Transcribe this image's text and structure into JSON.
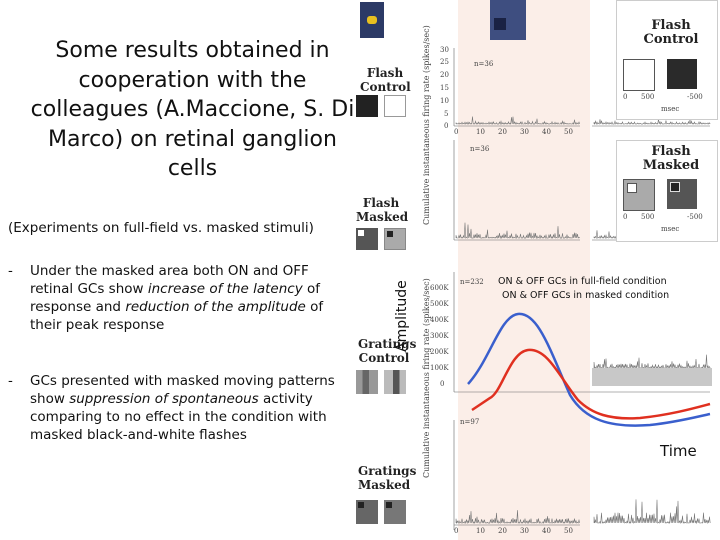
{
  "title": "Some results obtained in cooperation with the colleagues (A.Maccione, S. Di Marco) on retinal ganglion cells",
  "subtitle": "(Experiments on full-field vs. masked stimuli)",
  "bullets": [
    {
      "dash": "-",
      "parts": [
        {
          "text": "Under the masked area both ON and OFF retinal GCs show ",
          "italic": false
        },
        {
          "text": "increase of the latency",
          "italic": true
        },
        {
          "text": " of response and ",
          "italic": false
        },
        {
          "text": "reduction of the amplitude",
          "italic": true
        },
        {
          "text": " of their peak response",
          "italic": false
        }
      ]
    },
    {
      "dash": "-",
      "parts": [
        {
          "text": "GCs presented with masked moving patterns show ",
          "italic": false
        },
        {
          "text": "suppression of spontaneous",
          "italic": true
        },
        {
          "text": " activity comparing to no effect in the condition with masked black-and-white flashes",
          "italic": false
        }
      ]
    }
  ],
  "conditions": {
    "flash_control": "Flash Control",
    "flash_masked": "Flash Masked",
    "gratings_control": "Gratings Control",
    "gratings_masked": "Gratings Masked"
  },
  "insets": {
    "flash_control": "Flash Control",
    "flash_masked": "Flash Masked",
    "axis_500": "500",
    "axis_0": "0",
    "axis_neg500": "-500",
    "unit": "msec"
  },
  "plot_ylabel": "Cumulative instantaneous firing rate (spikes/sec)",
  "n_labels": [
    "n=36",
    "n=36",
    "n=232",
    "n=97"
  ],
  "x_ticks": [
    "0",
    "10",
    "20",
    "30",
    "40",
    "50"
  ],
  "y_ticks_top": [
    "30",
    "25",
    "20",
    "15",
    "10",
    "5",
    "0"
  ],
  "y_ticks_mid": [
    "600K",
    "500K",
    "400K",
    "300K",
    "200K",
    "100K",
    "0"
  ],
  "overlay": {
    "ylabel": "Amplitude",
    "xlabel": "Time",
    "legend": [
      "ON & OFF GCs  in full-field condition",
      "ON & OFF GCs  in masked condition"
    ],
    "colors": {
      "full_field": "#3a5fcd",
      "masked": "#e03020"
    }
  },
  "colors": {
    "panel_shade": "#fbeee8",
    "trace": "#777777"
  }
}
